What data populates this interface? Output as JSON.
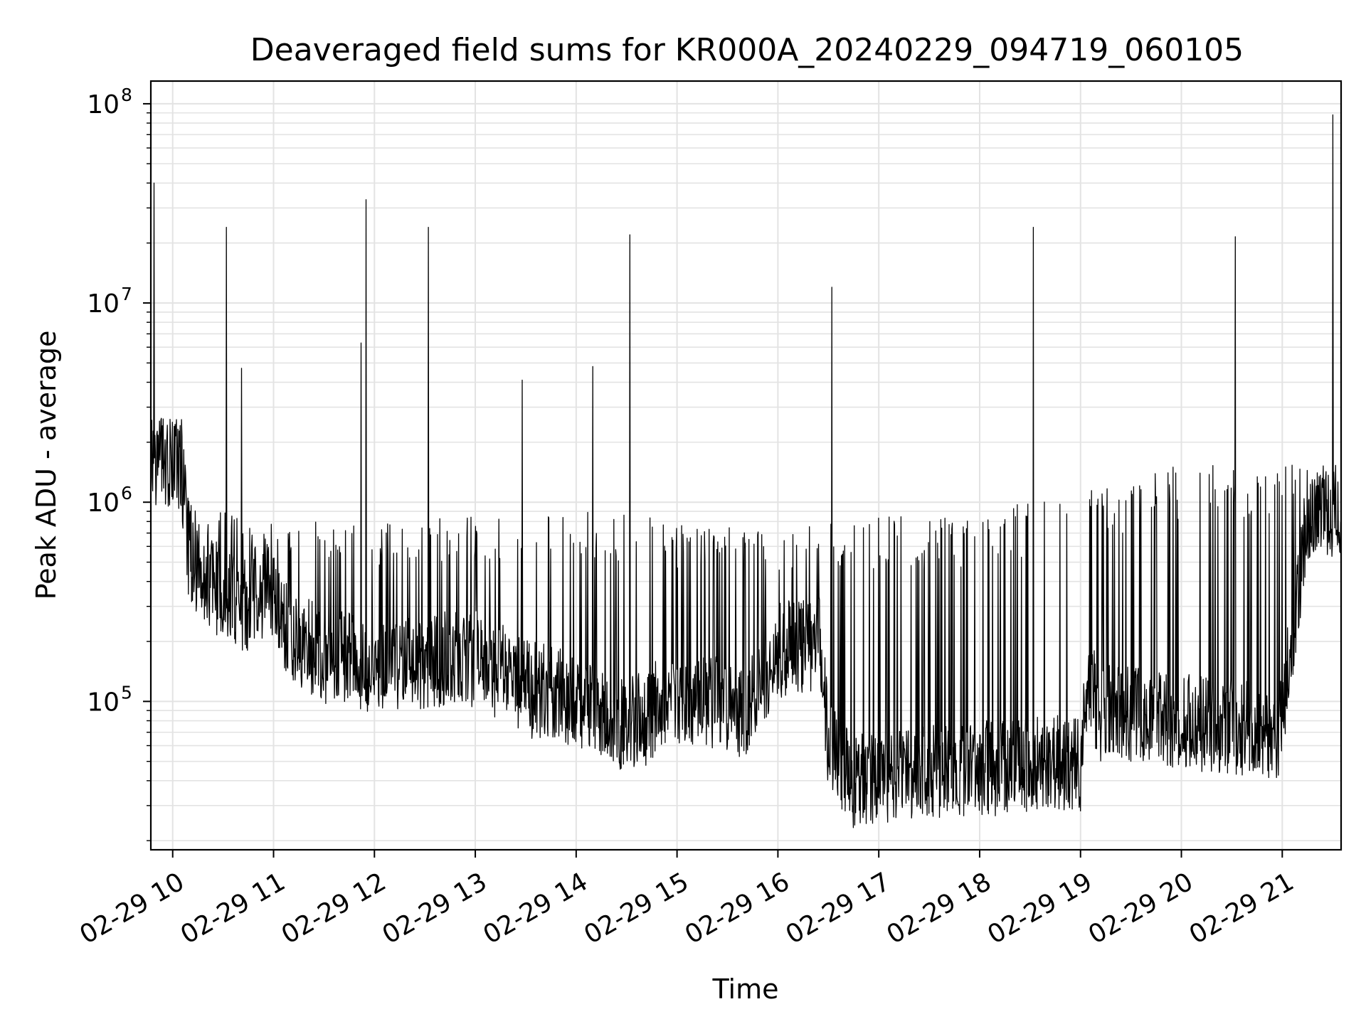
{
  "chart_data": {
    "type": "line",
    "title": "Deaveraged field sums for KR000A_20240229_094719_060105",
    "xlabel": "Time",
    "ylabel": "Peak ADU - average",
    "y_scale": "log",
    "ylim": [
      18000,
      130000000
    ],
    "xlim": [
      "2024-02-29 09:47",
      "2024-02-29 21:35"
    ],
    "grid": true,
    "line_color": "#000000",
    "x_tick_labels": [
      "02-29 10",
      "02-29 11",
      "02-29 12",
      "02-29 13",
      "02-29 14",
      "02-29 15",
      "02-29 16",
      "02-29 17",
      "02-29 18",
      "02-29 19",
      "02-29 20",
      "02-29 21"
    ],
    "x_tick_hours": [
      10,
      11,
      12,
      13,
      14,
      15,
      16,
      17,
      18,
      19,
      20,
      21
    ],
    "y_tick_labels": [
      {
        "value": 100000,
        "base": "10",
        "exp": "5"
      },
      {
        "value": 1000000,
        "base": "10",
        "exp": "6"
      },
      {
        "value": 10000000,
        "base": "10",
        "exp": "7"
      },
      {
        "value": 100000000,
        "base": "10",
        "exp": "8"
      }
    ],
    "spikes": [
      {
        "time": "2024-02-29 09:49",
        "y": 40000000
      },
      {
        "time": "2024-02-29 10:32",
        "y": 24000000
      },
      {
        "time": "2024-02-29 10:41",
        "y": 4700000
      },
      {
        "time": "2024-02-29 11:52",
        "y": 6300000
      },
      {
        "time": "2024-02-29 11:55",
        "y": 33000000
      },
      {
        "time": "2024-02-29 12:32",
        "y": 24000000
      },
      {
        "time": "2024-02-29 13:28",
        "y": 4100000
      },
      {
        "time": "2024-02-29 14:10",
        "y": 4800000
      },
      {
        "time": "2024-02-29 14:32",
        "y": 22000000
      },
      {
        "time": "2024-02-29 16:32",
        "y": 12000000
      },
      {
        "time": "2024-02-29 18:32",
        "y": 24000000
      },
      {
        "time": "2024-02-29 20:32",
        "y": 21500000
      },
      {
        "time": "2024-02-29 21:30",
        "y": 88000000
      }
    ],
    "baseline": [
      {
        "time": "2024-02-29 09:47",
        "y": 1500000
      },
      {
        "time": "2024-02-29 10:05",
        "y": 1600000
      },
      {
        "time": "2024-02-29 10:10",
        "y": 500000
      },
      {
        "time": "2024-02-29 10:40",
        "y": 300000
      },
      {
        "time": "2024-02-29 11:00",
        "y": 350000
      },
      {
        "time": "2024-02-29 11:10",
        "y": 200000
      },
      {
        "time": "2024-02-29 12:00",
        "y": 150000
      },
      {
        "time": "2024-02-29 13:00",
        "y": 170000
      },
      {
        "time": "2024-02-29 13:30",
        "y": 120000
      },
      {
        "time": "2024-02-29 14:00",
        "y": 100000
      },
      {
        "time": "2024-02-29 14:30",
        "y": 75000
      },
      {
        "time": "2024-02-29 15:00",
        "y": 110000
      },
      {
        "time": "2024-02-29 15:40",
        "y": 90000
      },
      {
        "time": "2024-02-29 16:00",
        "y": 180000
      },
      {
        "time": "2024-02-29 16:25",
        "y": 200000
      },
      {
        "time": "2024-02-29 16:30",
        "y": 60000
      },
      {
        "time": "2024-02-29 16:45",
        "y": 40000
      },
      {
        "time": "2024-02-29 17:30",
        "y": 45000
      },
      {
        "time": "2024-02-29 18:30",
        "y": 48000
      },
      {
        "time": "2024-02-29 19:00",
        "y": 50000
      },
      {
        "time": "2024-02-29 19:05",
        "y": 150000
      },
      {
        "time": "2024-02-29 19:10",
        "y": 90000
      },
      {
        "time": "2024-02-29 20:00",
        "y": 80000
      },
      {
        "time": "2024-02-29 20:58",
        "y": 70000
      },
      {
        "time": "2024-02-29 21:10",
        "y": 350000
      },
      {
        "time": "2024-02-29 21:15",
        "y": 900000
      },
      {
        "time": "2024-02-29 21:35",
        "y": 900000
      }
    ],
    "upper_envelope": [
      {
        "time": "2024-02-29 09:47",
        "y": 2500000
      },
      {
        "time": "2024-02-29 10:05",
        "y": 2500000
      },
      {
        "time": "2024-02-29 10:10",
        "y": 900000
      },
      {
        "time": "2024-02-29 11:00",
        "y": 700000
      },
      {
        "time": "2024-02-29 12:00",
        "y": 700000
      },
      {
        "time": "2024-02-29 14:00",
        "y": 800000
      },
      {
        "time": "2024-02-29 15:00",
        "y": 700000
      },
      {
        "time": "2024-02-29 16:00",
        "y": 600000
      },
      {
        "time": "2024-02-29 16:30",
        "y": 700000
      },
      {
        "time": "2024-02-29 18:00",
        "y": 750000
      },
      {
        "time": "2024-02-29 19:00",
        "y": 950000
      },
      {
        "time": "2024-02-29 20:00",
        "y": 1300000
      },
      {
        "time": "2024-02-29 21:00",
        "y": 1300000
      },
      {
        "time": "2024-02-29 21:35",
        "y": 1400000
      }
    ]
  }
}
